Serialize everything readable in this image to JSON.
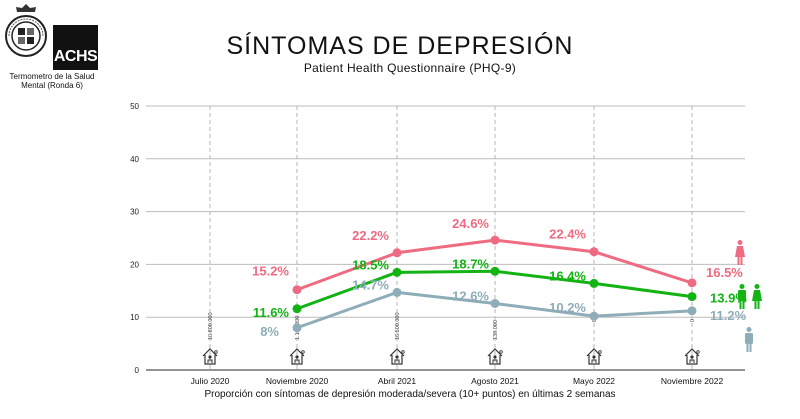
{
  "header": {
    "title": "SÍNTOMAS DE DEPRESIÓN",
    "subtitle": "Patient Health Questionnaire (PHQ-9)",
    "logo_achs": "ACHS",
    "logo_caption_line1": "Termometro de la Salud",
    "logo_caption_line2": "Mental (Ronda 6)"
  },
  "colors": {
    "women": "#ee6b82",
    "total": "#12b312",
    "men": "#8fadb8",
    "grid": "#bdbdbd",
    "axis": "#555555"
  },
  "chart_data": {
    "type": "line",
    "title": "SÍNTOMAS DE DEPRESIÓN",
    "subtitle": "Patient Health Questionnaire (PHQ-9)",
    "xlabel": "Proporción con síntomas de depresión moderada/severa (10+ puntos) en últimas 2 semanas",
    "ylabel": "",
    "categories": [
      "Julio 2020",
      "Noviembre 2020",
      "Abril 2021",
      "Agosto 2021",
      "Mayo 2022",
      "Noviembre 2022"
    ],
    "ylim": [
      0,
      50
    ],
    "yticks": [
      0,
      10,
      20,
      30,
      40,
      50
    ],
    "grid": true,
    "series": [
      {
        "name": "Mujeres",
        "color_key": "women",
        "values": [
          null,
          15.2,
          22.2,
          24.6,
          22.4,
          16.5
        ],
        "labels": [
          "",
          "15.2%",
          "22.2%",
          "24.6%",
          "22.4%",
          "16.5%"
        ]
      },
      {
        "name": "Total",
        "color_key": "total",
        "values": [
          null,
          11.6,
          18.5,
          18.7,
          16.4,
          13.9
        ],
        "labels": [
          "",
          "11.6%",
          "18.5%",
          "18.7%",
          "16.4%",
          "13.9%"
        ]
      },
      {
        "name": "Hombres",
        "color_key": "men",
        "values": [
          null,
          8,
          14.7,
          12.6,
          10.2,
          11.2
        ],
        "labels": [
          "",
          "8%",
          "14.7%",
          "12.6%",
          "10.2%",
          "11.2%"
        ]
      }
    ],
    "event_notes": [
      "10.800.000",
      "1.100.000",
      "16.500.000",
      "139.000",
      "0",
      "0"
    ],
    "event_icon": "house-icon",
    "legend": {
      "placement": "right",
      "items": [
        {
          "series": "Mujeres",
          "icon": "woman-icon"
        },
        {
          "series": "Total",
          "icon": "man-woman-icon"
        },
        {
          "series": "Hombres",
          "icon": "man-icon"
        }
      ]
    }
  }
}
